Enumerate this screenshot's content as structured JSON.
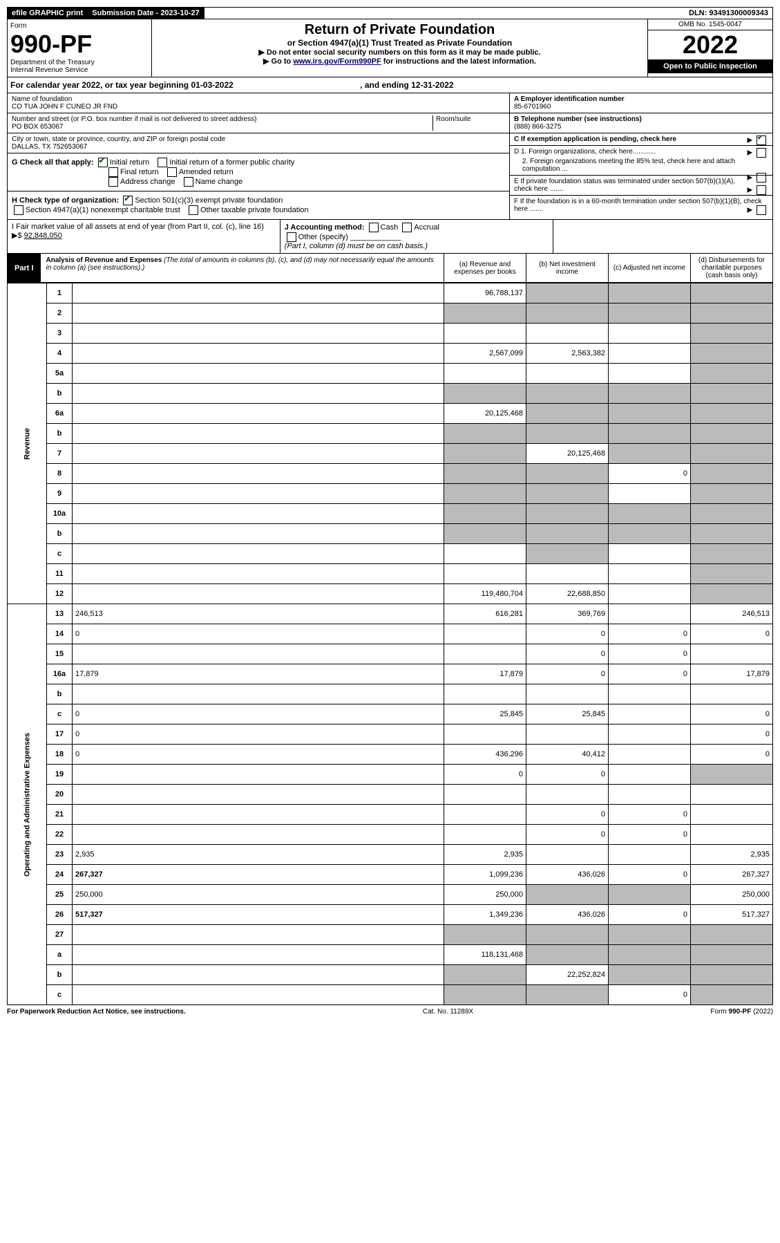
{
  "top": {
    "efile": "efile GRAPHIC print",
    "sub_label": "Submission Date - 2023-10-27",
    "dln": "DLN: 93491300009343"
  },
  "header": {
    "form": "Form",
    "num": "990-PF",
    "dept": "Department of the Treasury\nInternal Revenue Service",
    "title": "Return of Private Foundation",
    "sub": "or Section 4947(a)(1) Trust Treated as Private Foundation",
    "note1": "▶ Do not enter social security numbers on this form as it may be made public.",
    "note2_pre": "▶ Go to ",
    "note2_link": "www.irs.gov/Form990PF",
    "note2_post": " for instructions and the latest information.",
    "omb": "OMB No. 1545-0047",
    "year": "2022",
    "inspect": "Open to Public Inspection"
  },
  "cal": {
    "text": "For calendar year 2022, or tax year beginning 01-03-2022",
    "and": ", and ending 12-31-2022"
  },
  "foundation": {
    "name_label": "Name of foundation",
    "name": "CO TUA JOHN F CUNEO JR FND",
    "addr_label": "Number and street (or P.O. box number if mail is not delivered to street address)",
    "addr": "PO BOX 653067",
    "room_label": "Room/suite",
    "city_label": "City or town, state or province, country, and ZIP or foreign postal code",
    "city": "DALLAS, TX  752653067",
    "ein_label": "A Employer identification number",
    "ein": "85-6701960",
    "tel_label": "B Telephone number (see instructions)",
    "tel": "(888) 866-3275",
    "c_label": "C If exemption application is pending, check here",
    "d1": "D 1. Foreign organizations, check here............",
    "d2": "2. Foreign organizations meeting the 85% test, check here and attach computation ...",
    "e": "E  If private foundation status was terminated under section 507(b)(1)(A), check here .......",
    "f": "F  If the foundation is in a 60-month termination under section 507(b)(1)(B), check here .......",
    "g_label": "G Check all that apply:",
    "g_initial": "Initial return",
    "g_initial_former": "Initial return of a former public charity",
    "g_final": "Final return",
    "g_amended": "Amended return",
    "g_addr": "Address change",
    "g_name": "Name change",
    "h_label": "H Check type of organization:",
    "h_501": "Section 501(c)(3) exempt private foundation",
    "h_4947": "Section 4947(a)(1) nonexempt charitable trust",
    "h_other": "Other taxable private foundation",
    "i_label": "I Fair market value of all assets at end of year (from Part II, col. (c), line 16) ▶$ ",
    "i_val": "92,848,050",
    "j_label": "J Accounting method:",
    "j_cash": "Cash",
    "j_accrual": "Accrual",
    "j_other": "Other (specify)",
    "j_note": "(Part I, column (d) must be on cash basis.)"
  },
  "part1": {
    "label": "Part I",
    "title": "Analysis of Revenue and Expenses",
    "note": "(The total of amounts in columns (b), (c), and (d) may not necessarily equal the amounts in column (a) (see instructions).)",
    "col_a": "(a) Revenue and expenses per books",
    "col_b": "(b) Net investment income",
    "col_c": "(c) Adjusted net income",
    "col_d": "(d) Disbursements for charitable purposes (cash basis only)"
  },
  "side": {
    "revenue": "Revenue",
    "expenses": "Operating and Administrative Expenses"
  },
  "rows": [
    {
      "n": "1",
      "d": "",
      "a": "96,788,137",
      "b": "",
      "c": "",
      "shb": true,
      "shc": true,
      "shd": true
    },
    {
      "n": "2",
      "d": "",
      "a": "",
      "b": "",
      "c": "",
      "sha": true,
      "shb": true,
      "shc": true,
      "shd": true
    },
    {
      "n": "3",
      "d": "",
      "a": "",
      "b": "",
      "c": "",
      "shd": true
    },
    {
      "n": "4",
      "d": "",
      "a": "2,567,099",
      "b": "2,563,382",
      "c": "",
      "shd": true
    },
    {
      "n": "5a",
      "d": "",
      "a": "",
      "b": "",
      "c": "",
      "shd": true
    },
    {
      "n": "b",
      "d": "",
      "a": "",
      "b": "",
      "c": "",
      "sha": true,
      "shb": true,
      "shc": true,
      "shd": true
    },
    {
      "n": "6a",
      "d": "",
      "a": "20,125,468",
      "b": "",
      "c": "",
      "shb": true,
      "shc": true,
      "shd": true
    },
    {
      "n": "b",
      "d": "",
      "a": "",
      "b": "",
      "c": "",
      "sha": true,
      "shb": true,
      "shc": true,
      "shd": true
    },
    {
      "n": "7",
      "d": "",
      "a": "",
      "b": "20,125,468",
      "c": "",
      "sha": true,
      "shc": true,
      "shd": true
    },
    {
      "n": "8",
      "d": "",
      "a": "",
      "b": "",
      "c": "0",
      "sha": true,
      "shb": true,
      "shd": true
    },
    {
      "n": "9",
      "d": "",
      "a": "",
      "b": "",
      "c": "",
      "sha": true,
      "shb": true,
      "shd": true
    },
    {
      "n": "10a",
      "d": "",
      "a": "",
      "b": "",
      "c": "",
      "sha": true,
      "shb": true,
      "shc": true,
      "shd": true
    },
    {
      "n": "b",
      "d": "",
      "a": "",
      "b": "",
      "c": "",
      "sha": true,
      "shb": true,
      "shc": true,
      "shd": true
    },
    {
      "n": "c",
      "d": "",
      "a": "",
      "b": "",
      "c": "",
      "shb": true,
      "shd": true
    },
    {
      "n": "11",
      "d": "",
      "a": "",
      "b": "",
      "c": "",
      "shd": true
    },
    {
      "n": "12",
      "d": "",
      "a": "119,480,704",
      "b": "22,688,850",
      "c": "",
      "bold": true,
      "shd": true
    },
    {
      "n": "13",
      "d": "246,513",
      "a": "616,281",
      "b": "369,769",
      "c": ""
    },
    {
      "n": "14",
      "d": "0",
      "a": "",
      "b": "0",
      "c": "0"
    },
    {
      "n": "15",
      "d": "",
      "a": "",
      "b": "0",
      "c": "0"
    },
    {
      "n": "16a",
      "d": "17,879",
      "a": "17,879",
      "b": "0",
      "c": "0"
    },
    {
      "n": "b",
      "d": "",
      "a": "",
      "b": "",
      "c": ""
    },
    {
      "n": "c",
      "d": "0",
      "a": "25,845",
      "b": "25,845",
      "c": ""
    },
    {
      "n": "17",
      "d": "0",
      "a": "",
      "b": "",
      "c": ""
    },
    {
      "n": "18",
      "d": "0",
      "a": "436,296",
      "b": "40,412",
      "c": ""
    },
    {
      "n": "19",
      "d": "",
      "a": "0",
      "b": "0",
      "c": "",
      "shd": true
    },
    {
      "n": "20",
      "d": "",
      "a": "",
      "b": "",
      "c": ""
    },
    {
      "n": "21",
      "d": "",
      "a": "",
      "b": "0",
      "c": "0"
    },
    {
      "n": "22",
      "d": "",
      "a": "",
      "b": "0",
      "c": "0"
    },
    {
      "n": "23",
      "d": "2,935",
      "a": "2,935",
      "b": "",
      "c": ""
    },
    {
      "n": "24",
      "d": "267,327",
      "a": "1,099,236",
      "b": "436,026",
      "c": "0",
      "bold": true
    },
    {
      "n": "25",
      "d": "250,000",
      "a": "250,000",
      "b": "",
      "c": "",
      "shb": true,
      "shc": true
    },
    {
      "n": "26",
      "d": "517,327",
      "a": "1,349,236",
      "b": "436,026",
      "c": "0",
      "bold": true
    },
    {
      "n": "27",
      "d": "",
      "a": "",
      "b": "",
      "c": "",
      "sha": true,
      "shb": true,
      "shc": true,
      "shd": true
    },
    {
      "n": "a",
      "d": "",
      "a": "118,131,468",
      "b": "",
      "c": "",
      "bold": true,
      "shb": true,
      "shc": true,
      "shd": true
    },
    {
      "n": "b",
      "d": "",
      "a": "",
      "b": "22,252,824",
      "c": "",
      "bold": true,
      "sha": true,
      "shc": true,
      "shd": true
    },
    {
      "n": "c",
      "d": "",
      "a": "",
      "b": "",
      "c": "0",
      "bold": true,
      "sha": true,
      "shb": true,
      "shd": true
    }
  ],
  "footer": {
    "left": "For Paperwork Reduction Act Notice, see instructions.",
    "mid": "Cat. No. 11289X",
    "right": "Form 990-PF (2022)"
  }
}
